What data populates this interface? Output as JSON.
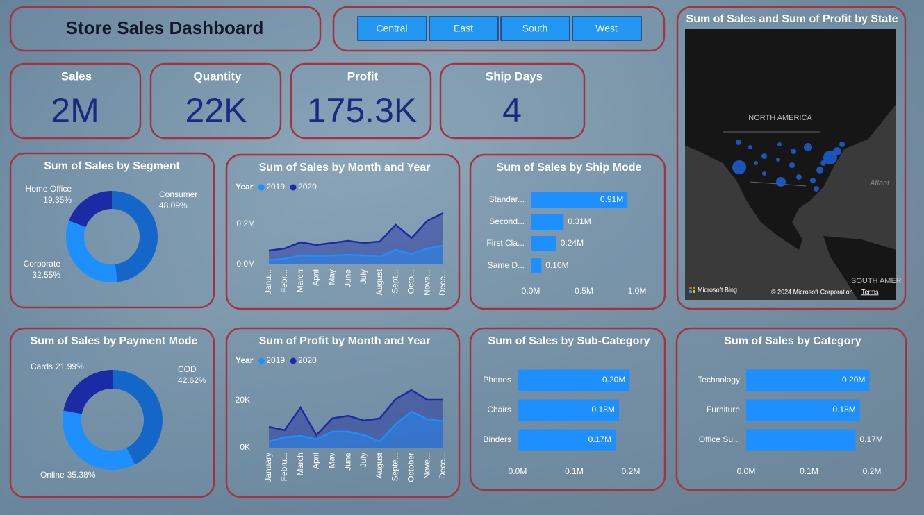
{
  "header": {
    "title": "Store Sales Dashboard"
  },
  "region_slicer": {
    "options": [
      "Central",
      "East",
      "South",
      "West"
    ]
  },
  "kpis": [
    {
      "label": "Sales",
      "value": "2M"
    },
    {
      "label": "Quantity",
      "value": "22K"
    },
    {
      "label": "Profit",
      "value": "175.3K"
    },
    {
      "label": "Ship Days",
      "value": "4"
    }
  ],
  "map": {
    "title": "Sum of Sales and Sum of Profit by State",
    "place_labels": [
      "NORTH AMERICA",
      "Atlant",
      "SOUTH AMER"
    ],
    "provider": "Microsoft Bing",
    "copyright": "© 2024 Microsoft Corporation",
    "terms_link": "Terms"
  },
  "chart_data": [
    {
      "type": "donut",
      "title": "Sum of Sales by Segment",
      "categories": [
        "Consumer",
        "Corporate",
        "Home Office"
      ],
      "values": [
        48.09,
        32.55,
        19.35
      ],
      "value_labels": [
        "48.09%",
        "32.55%",
        "19.35%"
      ],
      "colors": [
        "#1467c9",
        "#1e8fff",
        "#1a2ba5"
      ]
    },
    {
      "type": "area",
      "title": "Sum of Sales by Month and Year",
      "legend_title": "Year",
      "categories": [
        "Janu...",
        "Febr...",
        "March",
        "April",
        "May",
        "June",
        "July",
        "August",
        "Sept...",
        "Octo...",
        "Nove...",
        "Dece..."
      ],
      "series": [
        {
          "name": "2019",
          "color": "#1e8fff",
          "values": [
            21000,
            28000,
            45000,
            41000,
            45000,
            48000,
            45000,
            38000,
            72000,
            52000,
            79000,
            93000
          ]
        },
        {
          "name": "2020",
          "color": "#1a2ba5",
          "values": [
            69000,
            79000,
            110000,
            97000,
            107000,
            117000,
            107000,
            114000,
            197000,
            131000,
            217000,
            255000
          ]
        }
      ],
      "ylim": [
        0,
        300000
      ],
      "yticks": [
        {
          "value": 0,
          "label": "0.0M"
        },
        {
          "value": 200000,
          "label": "0.2M"
        }
      ]
    },
    {
      "type": "hbar",
      "title": "Sum of Sales by Ship Mode",
      "categories": [
        "Standar...",
        "Second...",
        "First Cla...",
        "Same D..."
      ],
      "values": [
        910000,
        310000,
        240000,
        100000
      ],
      "value_labels": [
        "0.91M",
        "0.31M",
        "0.24M",
        "0.10M"
      ],
      "color": "#1e8fff",
      "xlim": [
        0,
        1000000
      ],
      "xticks": [
        {
          "value": 0,
          "label": "0.0M"
        },
        {
          "value": 500000,
          "label": "0.5M"
        },
        {
          "value": 1000000,
          "label": "1.0M"
        }
      ]
    },
    {
      "type": "donut",
      "title": "Sum of Sales by Payment Mode",
      "categories": [
        "COD",
        "Online",
        "Cards"
      ],
      "values": [
        42.62,
        35.38,
        21.99
      ],
      "value_labels": [
        "42.62%",
        "35.38%",
        "21.99%"
      ],
      "colors": [
        "#1467c9",
        "#1e8fff",
        "#1a2ba5"
      ]
    },
    {
      "type": "area",
      "title": "Sum of Profit by Month and Year",
      "legend_title": "Year",
      "categories": [
        "January",
        "Febru...",
        "March",
        "April",
        "May",
        "June",
        "July",
        "August",
        "Septe...",
        "October",
        "Nove...",
        "Dece..."
      ],
      "series": [
        {
          "name": "2019",
          "color": "#1e8fff",
          "values": [
            2600,
            4400,
            5000,
            3500,
            6800,
            6800,
            5300,
            2600,
            10000,
            15300,
            12000,
            11200
          ]
        },
        {
          "name": "2020",
          "color": "#1a2ba5",
          "values": [
            8800,
            7400,
            17000,
            5300,
            12400,
            13500,
            11500,
            12400,
            20600,
            24400,
            20300,
            20300
          ]
        }
      ],
      "ylim": [
        0,
        30000
      ],
      "yticks": [
        {
          "value": 0,
          "label": "0K"
        },
        {
          "value": 20000,
          "label": "20K"
        }
      ]
    },
    {
      "type": "hbar",
      "title": "Sum of Sales by Sub-Category",
      "categories": [
        "Phones",
        "Chairs",
        "Binders"
      ],
      "values": [
        198000,
        179000,
        173000
      ],
      "value_labels": [
        "0.20M",
        "0.18M",
        "0.17M"
      ],
      "color": "#1e8fff",
      "xlim": [
        0,
        200000
      ],
      "xticks": [
        {
          "value": 0,
          "label": "0.0M"
        },
        {
          "value": 100000,
          "label": "0.1M"
        },
        {
          "value": 200000,
          "label": "0.2M"
        }
      ]
    },
    {
      "type": "hbar",
      "title": "Sum of Sales by Category",
      "categories": [
        "Technology",
        "Furniture",
        "Office Su..."
      ],
      "values": [
        196000,
        181000,
        174000
      ],
      "value_labels": [
        "0.20M",
        "0.18M",
        "0.17M"
      ],
      "color": "#1e8fff",
      "xlim": [
        0,
        200000
      ],
      "xticks": [
        {
          "value": 0,
          "label": "0.0M"
        },
        {
          "value": 100000,
          "label": "0.1M"
        },
        {
          "value": 200000,
          "label": "0.2M"
        }
      ]
    }
  ]
}
